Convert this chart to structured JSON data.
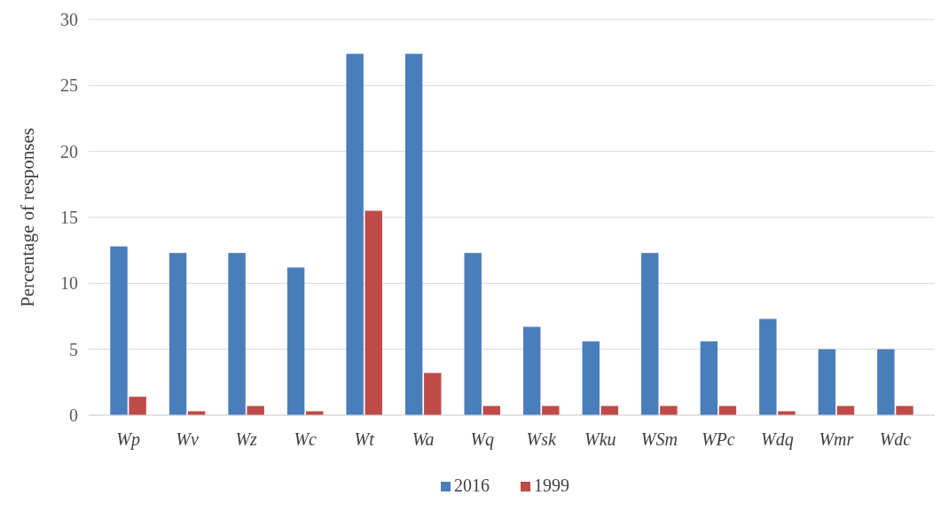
{
  "chart_data": {
    "type": "bar",
    "ylabel": "Percentage of responses",
    "categories": [
      "Wp",
      "Wv",
      "Wz",
      "Wc",
      "Wt",
      "Wa",
      "Wq",
      "Wsk",
      "Wku",
      "WSm",
      "WPc",
      "Wdq",
      "Wmr",
      "Wdc"
    ],
    "series": [
      {
        "name": "2016",
        "color": "#4a7ebb",
        "values": [
          12.8,
          12.3,
          12.3,
          11.2,
          27.4,
          27.4,
          12.3,
          6.7,
          5.6,
          12.3,
          5.6,
          7.3,
          5.0,
          5.0
        ]
      },
      {
        "name": "1999",
        "color": "#be4b48",
        "values": [
          1.4,
          0.3,
          0.7,
          0.3,
          15.5,
          3.2,
          0.7,
          0.7,
          0.7,
          0.7,
          0.7,
          0.3,
          0.7,
          0.7
        ]
      }
    ],
    "ylim": [
      0,
      30
    ],
    "yticks": [
      0,
      5,
      10,
      15,
      20,
      25,
      30
    ],
    "grid": "y",
    "legend": "bottom"
  }
}
